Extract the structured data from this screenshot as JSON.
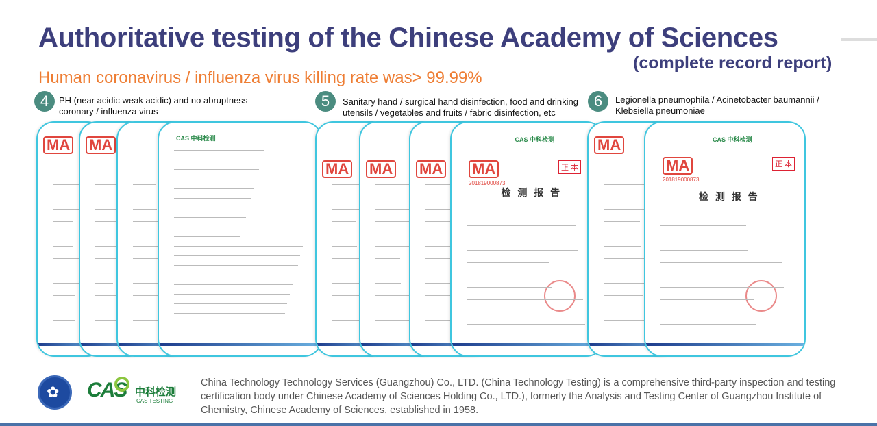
{
  "title": "Authoritative testing of the Chinese Academy of Sciences",
  "title_suffix": "(complete record report)",
  "headline": "Human coronavirus / influenza virus killing rate was> 99.99%",
  "sections": [
    {
      "number": "4",
      "caption_line1": "PH (near acidic weak acidic) and no abruptness",
      "caption_line2": "coronary / influenza virus"
    },
    {
      "number": "5",
      "caption_line1": "Sanitary hand / surgical hand disinfection, food and drinking",
      "caption_line2": "utensils / vegetables and fruits / fabric disinfection, etc"
    },
    {
      "number": "6",
      "caption_line1": "Legionella pneumophila / Acinetobacter baumannii /",
      "caption_line2": "Klebsiella pneumoniae"
    }
  ],
  "documents": {
    "ma_mark": "MA",
    "ma_number": "201819000873",
    "report_title": "检 测 报 告",
    "original_mark": "正 本",
    "cas_mark": "CAS 中科检测"
  },
  "footer": {
    "cas_logo_text": "CAS",
    "cas_logo_cn": "中科检测",
    "cas_logo_en": "CAS TESTING",
    "description": "China Technology Technology Services (Guangzhou) Co., LTD. (China Technology Testing) is a comprehensive third-party inspection and testing certification body under Chinese Academy of Sciences Holding Co., LTD.), formerly the Analysis and Testing Center of Guangzhou Institute of Chemistry, Chinese Academy of Sciences, established in 1958."
  },
  "colors": {
    "title": "#3d3f7c",
    "headline": "#ee7d33",
    "badge": "#4b8c80",
    "card_border": "#3fc6df"
  }
}
